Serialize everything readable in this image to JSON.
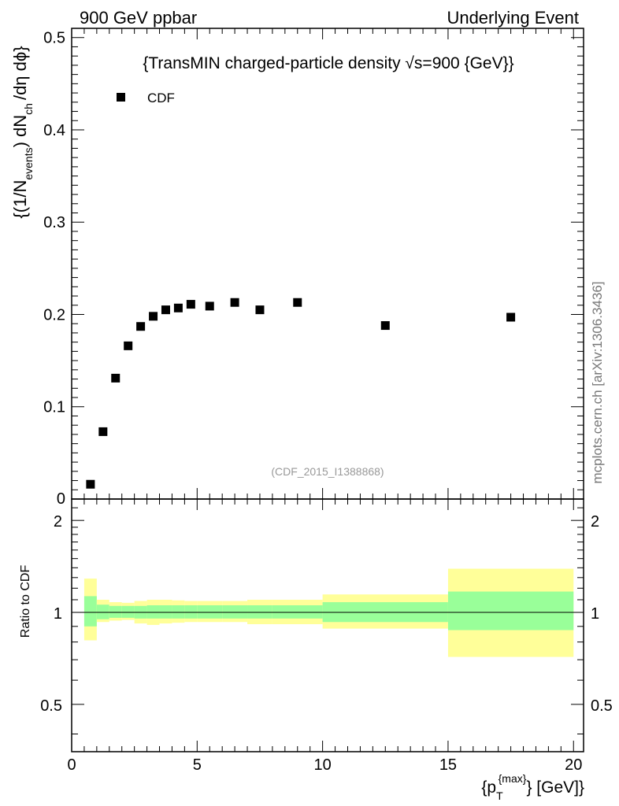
{
  "header": {
    "left": "900 GeV ppbar",
    "right": "Underlying Event"
  },
  "watermark": "mcplots.cern.ch [arXiv:1306.3436]",
  "chart_data": {
    "type": "scatter",
    "title": "{TransMIN charged-particle density √s=900 {GeV}}",
    "analysis_label": "(CDF_2015_I1388868)",
    "xlabel_base": "{p",
    "xlabel_sub": "T",
    "xlabel_sup": "{max}",
    "xlabel_tail": "} [GeV]}",
    "ylabel_main": "{(1/N",
    "ylabel_sub1": "events",
    "ylabel_mid": ") dN",
    "ylabel_sub2": "ch",
    "ylabel_tail": "/dη dϕ}",
    "ratio_ylabel": "Ratio to CDF",
    "xlim": [
      0,
      20.4
    ],
    "ylim": [
      0,
      0.51
    ],
    "ratio_ylim": [
      0.35,
      2.35
    ],
    "x_ticks": [
      "0",
      "5",
      "10",
      "15",
      "20"
    ],
    "y_ticks": [
      "0",
      "0.1",
      "0.2",
      "0.3",
      "0.4",
      "0.5"
    ],
    "ratio_ticks": [
      "0.5",
      "1",
      "2"
    ],
    "legend": [
      "CDF"
    ],
    "series": [
      {
        "name": "CDF",
        "color": "#000000",
        "x": [
          0.75,
          1.25,
          1.75,
          2.25,
          2.75,
          3.25,
          3.75,
          4.25,
          4.75,
          5.5,
          6.5,
          7.5,
          9.0,
          12.5,
          17.5
        ],
        "y": [
          0.016,
          0.073,
          0.131,
          0.166,
          0.187,
          0.198,
          0.205,
          0.207,
          0.211,
          0.209,
          0.213,
          0.205,
          0.213,
          0.188,
          0.197
        ]
      }
    ],
    "ratio_bands": {
      "inner_color": "#99ff99",
      "outer_color": "#ffff99",
      "bins": [
        {
          "lo": 0.5,
          "hi": 1.0,
          "inner": [
            0.9,
            1.13
          ],
          "outer": [
            0.81,
            1.29
          ]
        },
        {
          "lo": 1.0,
          "hi": 1.5,
          "inner": [
            0.95,
            1.06
          ],
          "outer": [
            0.93,
            1.1
          ]
        },
        {
          "lo": 1.5,
          "hi": 2.0,
          "inner": [
            0.96,
            1.05
          ],
          "outer": [
            0.94,
            1.08
          ]
        },
        {
          "lo": 2.0,
          "hi": 2.5,
          "inner": [
            0.96,
            1.05
          ],
          "outer": [
            0.945,
            1.075
          ]
        },
        {
          "lo": 2.5,
          "hi": 3.0,
          "inner": [
            0.955,
            1.05
          ],
          "outer": [
            0.92,
            1.09
          ]
        },
        {
          "lo": 3.0,
          "hi": 3.5,
          "inner": [
            0.955,
            1.055
          ],
          "outer": [
            0.91,
            1.1
          ]
        },
        {
          "lo": 3.5,
          "hi": 4.0,
          "inner": [
            0.955,
            1.055
          ],
          "outer": [
            0.92,
            1.1
          ]
        },
        {
          "lo": 4.0,
          "hi": 4.5,
          "inner": [
            0.955,
            1.055
          ],
          "outer": [
            0.925,
            1.095
          ]
        },
        {
          "lo": 4.5,
          "hi": 5.0,
          "inner": [
            0.955,
            1.055
          ],
          "outer": [
            0.93,
            1.09
          ]
        },
        {
          "lo": 5.0,
          "hi": 6.0,
          "inner": [
            0.955,
            1.055
          ],
          "outer": [
            0.93,
            1.09
          ]
        },
        {
          "lo": 6.0,
          "hi": 7.0,
          "inner": [
            0.955,
            1.055
          ],
          "outer": [
            0.93,
            1.09
          ]
        },
        {
          "lo": 7.0,
          "hi": 8.0,
          "inner": [
            0.955,
            1.055
          ],
          "outer": [
            0.915,
            1.1
          ]
        },
        {
          "lo": 8.0,
          "hi": 10.0,
          "inner": [
            0.955,
            1.055
          ],
          "outer": [
            0.915,
            1.1
          ]
        },
        {
          "lo": 10.0,
          "hi": 15.0,
          "inner": [
            0.93,
            1.08
          ],
          "outer": [
            0.885,
            1.145
          ]
        },
        {
          "lo": 15.0,
          "hi": 20.0,
          "inner": [
            0.875,
            1.17
          ],
          "outer": [
            0.715,
            1.39
          ]
        }
      ]
    }
  }
}
